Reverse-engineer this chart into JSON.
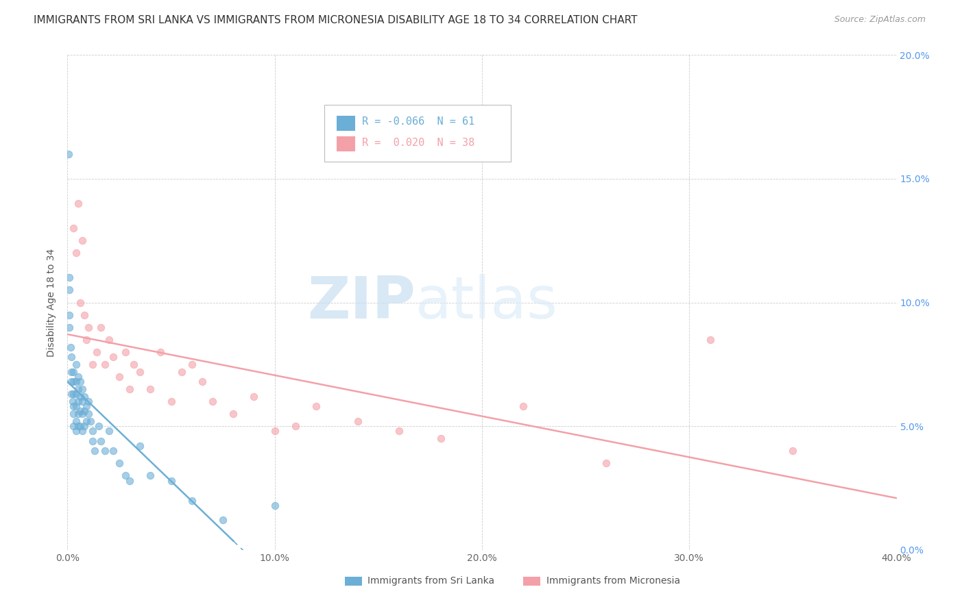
{
  "title": "IMMIGRANTS FROM SRI LANKA VS IMMIGRANTS FROM MICRONESIA DISABILITY AGE 18 TO 34 CORRELATION CHART",
  "source": "Source: ZipAtlas.com",
  "ylabel": "Disability Age 18 to 34",
  "xlim": [
    0.0,
    0.4
  ],
  "ylim": [
    0.0,
    0.2
  ],
  "xticks": [
    0.0,
    0.1,
    0.2,
    0.3,
    0.4
  ],
  "yticks": [
    0.0,
    0.05,
    0.1,
    0.15,
    0.2
  ],
  "xticklabels": [
    "0.0%",
    "10.0%",
    "20.0%",
    "30.0%",
    "40.0%"
  ],
  "yticklabels": [
    "0.0%",
    "5.0%",
    "10.0%",
    "15.0%",
    "20.0%"
  ],
  "sri_lanka_color": "#6baed6",
  "micronesia_color": "#f4a0a8",
  "sri_lanka_R": -0.066,
  "sri_lanka_N": 61,
  "micronesia_R": 0.02,
  "micronesia_N": 38,
  "sri_lanka_x": [
    0.0005,
    0.001,
    0.001,
    0.001,
    0.001,
    0.0015,
    0.002,
    0.002,
    0.002,
    0.002,
    0.0025,
    0.003,
    0.003,
    0.003,
    0.003,
    0.003,
    0.003,
    0.004,
    0.004,
    0.004,
    0.004,
    0.004,
    0.004,
    0.005,
    0.005,
    0.005,
    0.005,
    0.005,
    0.006,
    0.006,
    0.006,
    0.006,
    0.007,
    0.007,
    0.007,
    0.007,
    0.008,
    0.008,
    0.008,
    0.009,
    0.009,
    0.01,
    0.01,
    0.011,
    0.012,
    0.012,
    0.013,
    0.015,
    0.016,
    0.018,
    0.02,
    0.022,
    0.025,
    0.028,
    0.03,
    0.035,
    0.04,
    0.05,
    0.06,
    0.075,
    0.1
  ],
  "sri_lanka_y": [
    0.16,
    0.11,
    0.105,
    0.095,
    0.09,
    0.082,
    0.078,
    0.072,
    0.068,
    0.063,
    0.06,
    0.072,
    0.068,
    0.063,
    0.058,
    0.055,
    0.05,
    0.075,
    0.068,
    0.063,
    0.058,
    0.052,
    0.048,
    0.07,
    0.065,
    0.06,
    0.055,
    0.05,
    0.068,
    0.062,
    0.056,
    0.05,
    0.065,
    0.06,
    0.055,
    0.048,
    0.062,
    0.056,
    0.05,
    0.058,
    0.052,
    0.06,
    0.055,
    0.052,
    0.048,
    0.044,
    0.04,
    0.05,
    0.044,
    0.04,
    0.048,
    0.04,
    0.035,
    0.03,
    0.028,
    0.042,
    0.03,
    0.028,
    0.02,
    0.012,
    0.018
  ],
  "micronesia_x": [
    0.003,
    0.004,
    0.005,
    0.006,
    0.007,
    0.008,
    0.009,
    0.01,
    0.012,
    0.014,
    0.016,
    0.018,
    0.02,
    0.022,
    0.025,
    0.028,
    0.03,
    0.032,
    0.035,
    0.04,
    0.045,
    0.05,
    0.055,
    0.06,
    0.065,
    0.07,
    0.08,
    0.09,
    0.1,
    0.11,
    0.12,
    0.14,
    0.16,
    0.18,
    0.22,
    0.26,
    0.31,
    0.35
  ],
  "micronesia_y": [
    0.13,
    0.12,
    0.14,
    0.1,
    0.125,
    0.095,
    0.085,
    0.09,
    0.075,
    0.08,
    0.09,
    0.075,
    0.085,
    0.078,
    0.07,
    0.08,
    0.065,
    0.075,
    0.072,
    0.065,
    0.08,
    0.06,
    0.072,
    0.075,
    0.068,
    0.06,
    0.055,
    0.062,
    0.048,
    0.05,
    0.058,
    0.052,
    0.048,
    0.045,
    0.058,
    0.035,
    0.085,
    0.04
  ],
  "watermark_zip": "ZIP",
  "watermark_atlas": "atlas",
  "background_color": "#ffffff",
  "grid_color": "#cccccc",
  "title_fontsize": 11,
  "label_fontsize": 10,
  "tick_fontsize": 10,
  "legend_fontsize": 11,
  "right_ytick_color": "#5599ee",
  "sri_lanka_trend_solid_end": 0.08,
  "micronesia_trend_solid_end": 0.35
}
